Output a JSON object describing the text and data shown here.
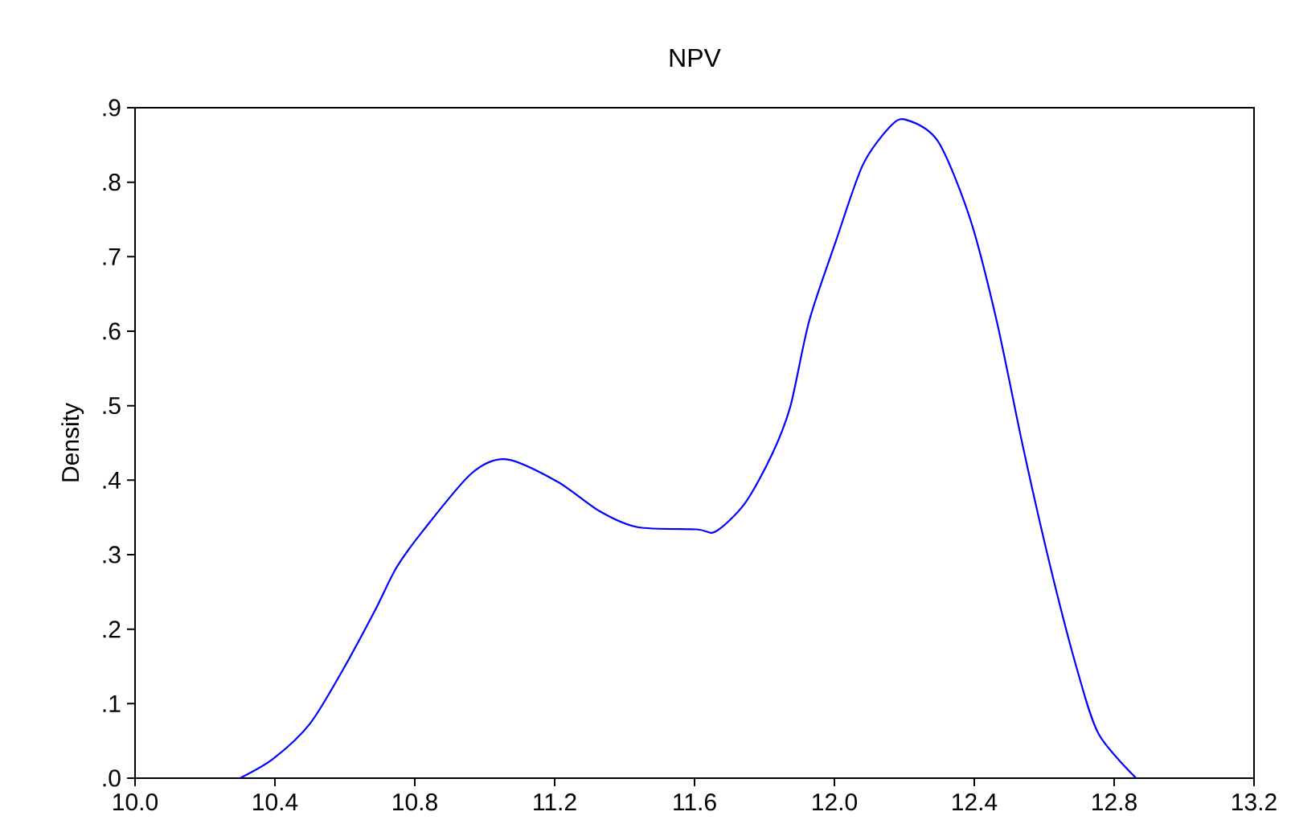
{
  "chart_data": {
    "type": "line",
    "title": "NPV",
    "ylabel": "Density",
    "x": [
      10.3,
      10.395,
      10.5,
      10.595,
      10.686,
      10.748,
      10.825,
      10.962,
      11.062,
      11.208,
      11.33,
      11.437,
      11.606,
      11.66,
      11.744,
      11.821,
      11.874,
      11.928,
      12.005,
      12.081,
      12.158,
      12.204,
      12.296,
      12.388,
      12.464,
      12.541,
      12.618,
      12.694,
      12.756,
      12.863
    ],
    "series": [
      {
        "color": "#0000ff",
        "values": [
          0.0,
          0.026,
          0.073,
          0.146,
          0.225,
          0.283,
          0.333,
          0.409,
          0.428,
          0.398,
          0.358,
          0.337,
          0.334,
          0.331,
          0.369,
          0.434,
          0.499,
          0.614,
          0.722,
          0.823,
          0.874,
          0.884,
          0.855,
          0.751,
          0.614,
          0.441,
          0.283,
          0.146,
          0.059,
          0.0
        ]
      }
    ],
    "xlim": [
      10.0,
      13.2
    ],
    "xticks": [
      {
        "value": 10.0,
        "label": "10.0"
      },
      {
        "value": 10.4,
        "label": "10.4"
      },
      {
        "value": 10.8,
        "label": "10.8"
      },
      {
        "value": 11.2,
        "label": "11.2"
      },
      {
        "value": 11.6,
        "label": "11.6"
      },
      {
        "value": 12.0,
        "label": "12.0"
      },
      {
        "value": 12.4,
        "label": "12.4"
      },
      {
        "value": 12.8,
        "label": "12.8"
      },
      {
        "value": 13.2,
        "label": "13.2"
      }
    ],
    "ylim": [
      0,
      0.9
    ],
    "yticks": [
      {
        "value": 0.0,
        "label": ".0"
      },
      {
        "value": 0.1,
        "label": ".1"
      },
      {
        "value": 0.2,
        "label": ".2"
      },
      {
        "value": 0.3,
        "label": ".3"
      },
      {
        "value": 0.4,
        "label": ".4"
      },
      {
        "value": 0.5,
        "label": ".5"
      },
      {
        "value": 0.6,
        "label": ".6"
      },
      {
        "value": 0.7,
        "label": ".7"
      },
      {
        "value": 0.8,
        "label": ".8"
      },
      {
        "value": 0.9,
        "label": ".9"
      }
    ],
    "grid": false,
    "marker": "none",
    "line_style": "solid"
  }
}
